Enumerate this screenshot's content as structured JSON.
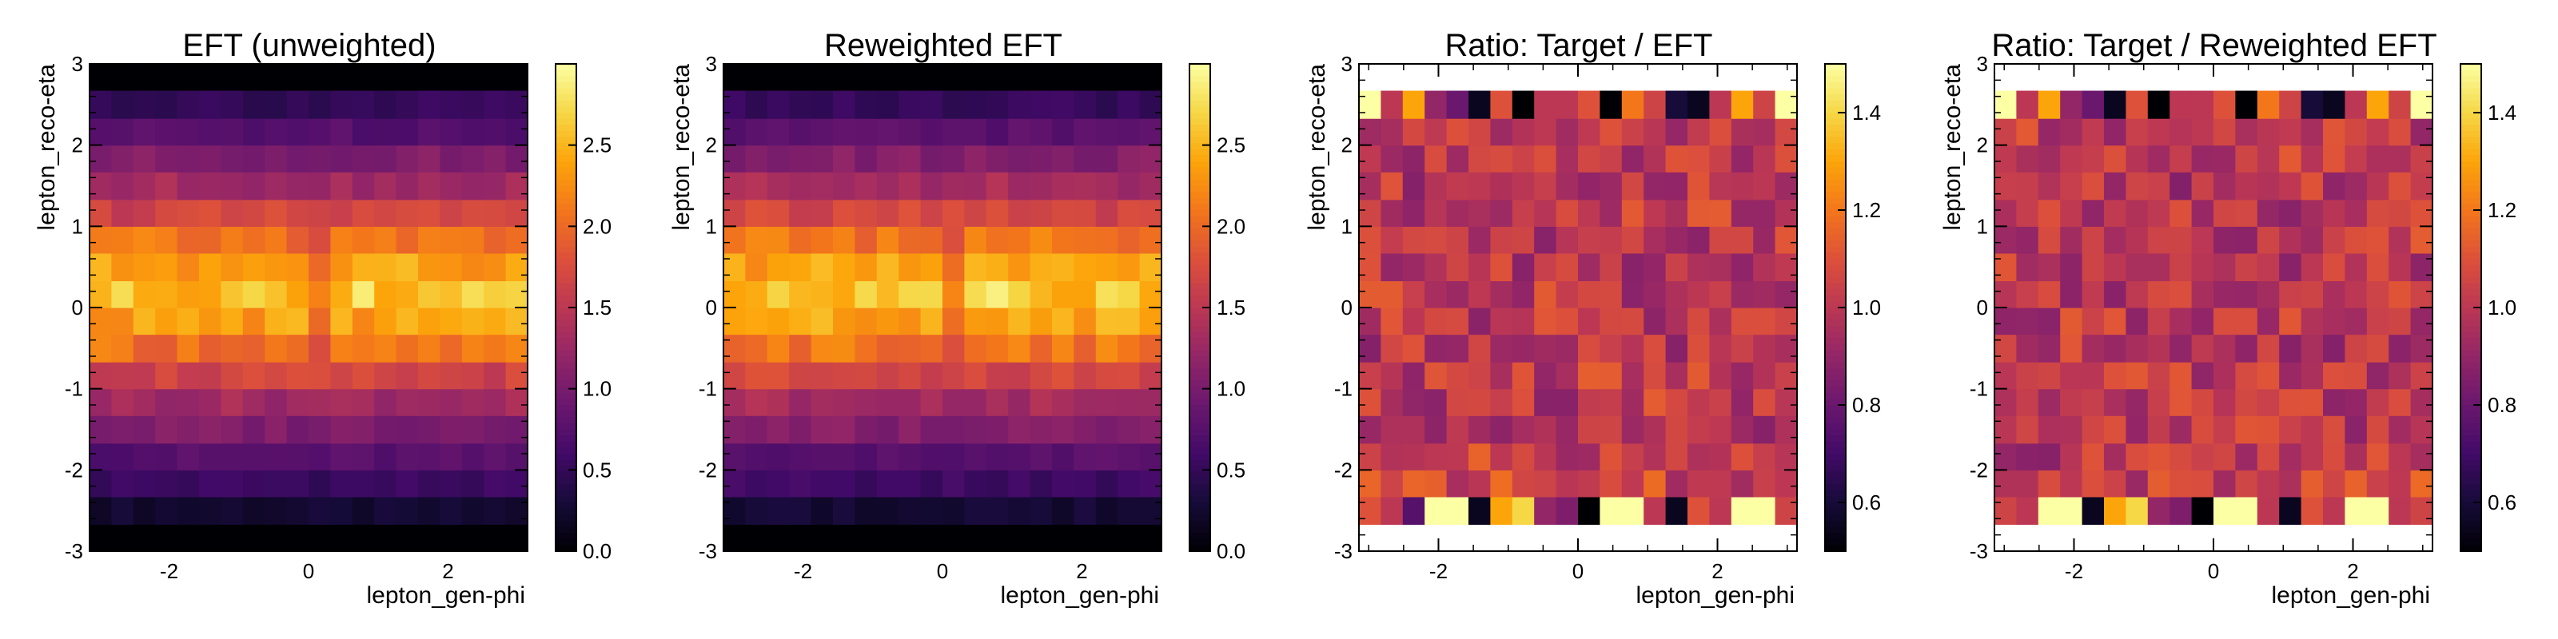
{
  "figure": {
    "panels": [
      {
        "title": "EFT (unweighted)",
        "xlabel": "lepton_gen-phi",
        "ylabel": "lepton_reco-eta"
      },
      {
        "title": "Reweighted EFT",
        "xlabel": "lepton_gen-phi",
        "ylabel": "lepton_reco-eta"
      },
      {
        "title": "Ratio: Target / EFT",
        "xlabel": "lepton_gen-phi",
        "ylabel": "lepton_reco-eta"
      },
      {
        "title": "Ratio: Target / Reweighted EFT",
        "xlabel": "lepton_gen-phi",
        "ylabel": "lepton_reco-eta"
      }
    ]
  },
  "chart_data": [
    {
      "type": "heatmap",
      "title": "EFT (unweighted)",
      "xlabel": "lepton_gen-phi",
      "ylabel": "lepton_reco-eta",
      "xlim": [
        -3.14,
        3.14
      ],
      "ylim": [
        -3,
        3
      ],
      "x_ticks": [
        "-2",
        "0",
        "2"
      ],
      "y_ticks": [
        "-3",
        "-2",
        "-1",
        "0",
        "1",
        "2",
        "3"
      ],
      "colormap": "inferno",
      "color_range": [
        0,
        3.0
      ],
      "colorbar_ticks": [
        "0.0",
        "0.5",
        "1.0",
        "1.5",
        "2.0",
        "2.5"
      ],
      "n_x_bins": 20,
      "eta_bin_edges": [
        -2.67,
        -2.33,
        -2.0,
        -1.67,
        -1.33,
        -1.0,
        -0.67,
        -0.33,
        0.0,
        0.33,
        0.67,
        1.0,
        1.33,
        1.67,
        2.0,
        2.33,
        2.67
      ],
      "row_mean_values": [
        0.25,
        0.55,
        0.75,
        1.05,
        1.3,
        1.65,
        2.05,
        2.35,
        2.55,
        2.35,
        2.05,
        1.65,
        1.3,
        1.05,
        0.75,
        0.5
      ],
      "empty_region_value": 0.0
    },
    {
      "type": "heatmap",
      "title": "Reweighted EFT",
      "xlabel": "lepton_gen-phi",
      "ylabel": "lepton_reco-eta",
      "xlim": [
        -3.14,
        3.14
      ],
      "ylim": [
        -3,
        3
      ],
      "x_ticks": [
        "-2",
        "0",
        "2"
      ],
      "y_ticks": [
        "-3",
        "-2",
        "-1",
        "0",
        "1",
        "2",
        "3"
      ],
      "colormap": "inferno",
      "color_range": [
        0,
        3.0
      ],
      "colorbar_ticks": [
        "0.0",
        "0.5",
        "1.0",
        "1.5",
        "2.0",
        "2.5"
      ],
      "n_x_bins": 20,
      "eta_bin_edges": [
        -2.67,
        -2.33,
        -2.0,
        -1.67,
        -1.33,
        -1.0,
        -0.67,
        -0.33,
        0.0,
        0.33,
        0.67,
        1.0,
        1.33,
        1.67,
        2.0,
        2.33,
        2.67
      ],
      "row_mean_values": [
        0.27,
        0.57,
        0.78,
        1.08,
        1.33,
        1.68,
        2.08,
        2.38,
        2.58,
        2.38,
        2.08,
        1.68,
        1.33,
        1.08,
        0.78,
        0.52
      ],
      "empty_region_value": 0.0
    },
    {
      "type": "heatmap",
      "title": "Ratio: Target / EFT",
      "xlabel": "lepton_gen-phi",
      "ylabel": "lepton_reco-eta",
      "xlim": [
        -3.14,
        3.14
      ],
      "ylim": [
        -3,
        3
      ],
      "x_ticks": [
        "-2",
        "0",
        "2"
      ],
      "y_ticks": [
        "-3",
        "-2",
        "-1",
        "0",
        "1",
        "2",
        "3"
      ],
      "colormap": "inferno",
      "color_range": [
        0.5,
        1.5
      ],
      "colorbar_ticks": [
        "0.6",
        "0.8",
        "1.0",
        "1.2",
        "1.4"
      ],
      "n_x_bins": 20,
      "eta_bin_edges": [
        -2.67,
        -2.33,
        -2.0,
        -1.67,
        -1.33,
        -1.0,
        -0.67,
        -0.33,
        0.0,
        0.33,
        0.67,
        1.0,
        1.33,
        1.67,
        2.0,
        2.33,
        2.67
      ],
      "row_mean_values": [
        1.0,
        1.05,
        1.02,
        1.0,
        1.0,
        1.01,
        0.99,
        1.0,
        1.0,
        1.0,
        1.0,
        1.0,
        0.98,
        1.0,
        1.02,
        1.03
      ],
      "edge_row_bottom": [
        1.1,
        1.0,
        0.75,
        1.5,
        1.5,
        0.55,
        1.3,
        1.4,
        0.9,
        0.85,
        0.5,
        1.5,
        1.5,
        1.0,
        0.55,
        1.1,
        1.0,
        1.5,
        1.5,
        1.05
      ],
      "edge_row_top": [
        1.5,
        1.0,
        1.3,
        0.9,
        0.8,
        0.55,
        1.1,
        0.5,
        1.0,
        1.0,
        1.1,
        0.5,
        1.2,
        1.05,
        0.6,
        0.55,
        1.0,
        1.3,
        1.05,
        1.5
      ]
    },
    {
      "type": "heatmap",
      "title": "Ratio: Target / Reweighted EFT",
      "xlabel": "lepton_gen-phi",
      "ylabel": "lepton_reco-eta",
      "xlim": [
        -3.14,
        3.14
      ],
      "ylim": [
        -3,
        3
      ],
      "x_ticks": [
        "-2",
        "0",
        "2"
      ],
      "y_ticks": [
        "-3",
        "-2",
        "-1",
        "0",
        "1",
        "2",
        "3"
      ],
      "colormap": "inferno",
      "color_range": [
        0.5,
        1.5
      ],
      "colorbar_ticks": [
        "0.6",
        "0.8",
        "1.0",
        "1.2",
        "1.4"
      ],
      "n_x_bins": 20,
      "eta_bin_edges": [
        -2.67,
        -2.33,
        -2.0,
        -1.67,
        -1.33,
        -1.0,
        -0.67,
        -0.33,
        0.0,
        0.33,
        0.67,
        1.0,
        1.33,
        1.67,
        2.0,
        2.33,
        2.67
      ],
      "row_mean_values": [
        1.0,
        1.04,
        1.0,
        1.0,
        1.0,
        1.0,
        0.99,
        1.0,
        1.0,
        1.0,
        1.0,
        1.0,
        0.98,
        1.0,
        1.02,
        1.02
      ],
      "edge_row_bottom": [
        1.05,
        1.0,
        1.5,
        1.5,
        0.55,
        1.3,
        1.4,
        0.9,
        0.85,
        0.5,
        1.5,
        1.5,
        1.0,
        0.55,
        1.1,
        1.0,
        1.5,
        1.5,
        1.0,
        1.05
      ],
      "edge_row_top": [
        1.5,
        1.0,
        1.3,
        0.9,
        0.8,
        0.55,
        1.1,
        0.5,
        1.0,
        1.0,
        1.1,
        0.5,
        1.2,
        1.05,
        0.6,
        0.55,
        1.0,
        1.3,
        1.05,
        1.5
      ]
    }
  ]
}
